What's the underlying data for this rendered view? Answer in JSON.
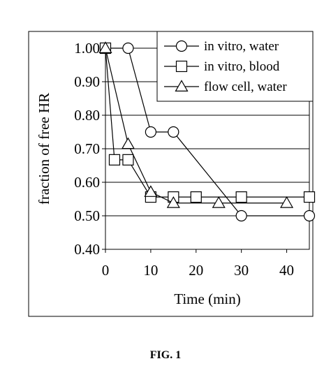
{
  "caption": "FIG. 1",
  "chart_data": {
    "type": "line",
    "title": "",
    "xlabel": "Time (min)",
    "ylabel": "fraction of free HR",
    "xlim": [
      0,
      45
    ],
    "ylim": [
      0.4,
      1.0
    ],
    "xticks": [
      "0",
      "10",
      "20",
      "30",
      "40"
    ],
    "xtick_values": [
      0,
      10,
      20,
      30,
      40
    ],
    "yticks": [
      "1.00",
      "0.90",
      "0.80",
      "0.70",
      "0.60",
      "0.50",
      "0.40"
    ],
    "ytick_values": [
      1.0,
      0.9,
      0.8,
      0.7,
      0.6,
      0.5,
      0.4
    ],
    "grid": "horizontal",
    "legend_position": "top-right",
    "series": [
      {
        "name": "in vitro, water",
        "marker": "circle",
        "x": [
          0,
          5,
          10,
          15,
          30,
          45
        ],
        "y": [
          1.0,
          1.0,
          0.75,
          0.75,
          0.5,
          0.5
        ]
      },
      {
        "name": "in vitro, blood",
        "marker": "square",
        "x": [
          0,
          2,
          5,
          10,
          15,
          20,
          30,
          45
        ],
        "y": [
          1.0,
          0.667,
          0.667,
          0.556,
          0.556,
          0.556,
          0.556,
          0.556
        ]
      },
      {
        "name": "flow cell, water",
        "marker": "triangle",
        "x": [
          0,
          5,
          10,
          15,
          25,
          40
        ],
        "y": [
          1.0,
          0.714,
          0.571,
          0.538,
          0.538,
          0.538
        ]
      }
    ]
  }
}
